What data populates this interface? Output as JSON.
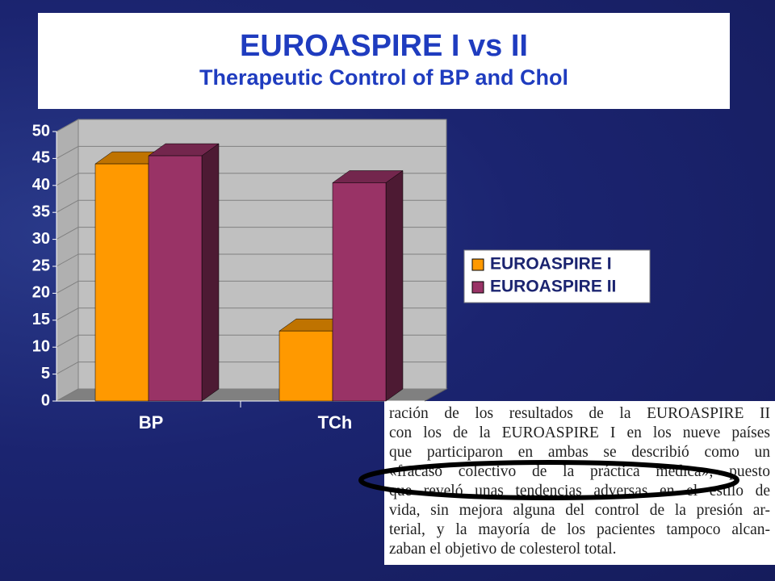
{
  "chart_data": {
    "type": "bar3d",
    "title": "EUROASPIRE I vs II",
    "subtitle": "Therapeutic Control of BP and Chol",
    "categories": [
      "BP",
      "TCh"
    ],
    "series": [
      {
        "name": "EUROASPIRE I",
        "color": "#ff9900",
        "values": [
          44,
          13
        ]
      },
      {
        "name": "EUROASPIRE II",
        "color": "#993366",
        "values": [
          45.5,
          40.5
        ]
      }
    ],
    "ylim": [
      0,
      50
    ],
    "yticks": [
      0,
      5,
      10,
      15,
      20,
      25,
      30,
      35,
      40,
      45,
      50
    ],
    "grid": true,
    "legend": "right"
  },
  "excerpt": {
    "lines": [
      "ración de los resultados de la EUROASPIRE II",
      "con los de la EUROASPIRE I en los nueve países",
      "que participaron en ambas se describió como un",
      "«fracaso colectivo de la práctica médica», puesto",
      "que reveló unas tendencias adversas en el estilo de",
      "vida, sin mejora alguna del control de la presión ar-",
      "terial, y la mayoría de los pacientes tampoco alcan-",
      "zaban el objetivo de colesterol total."
    ]
  }
}
